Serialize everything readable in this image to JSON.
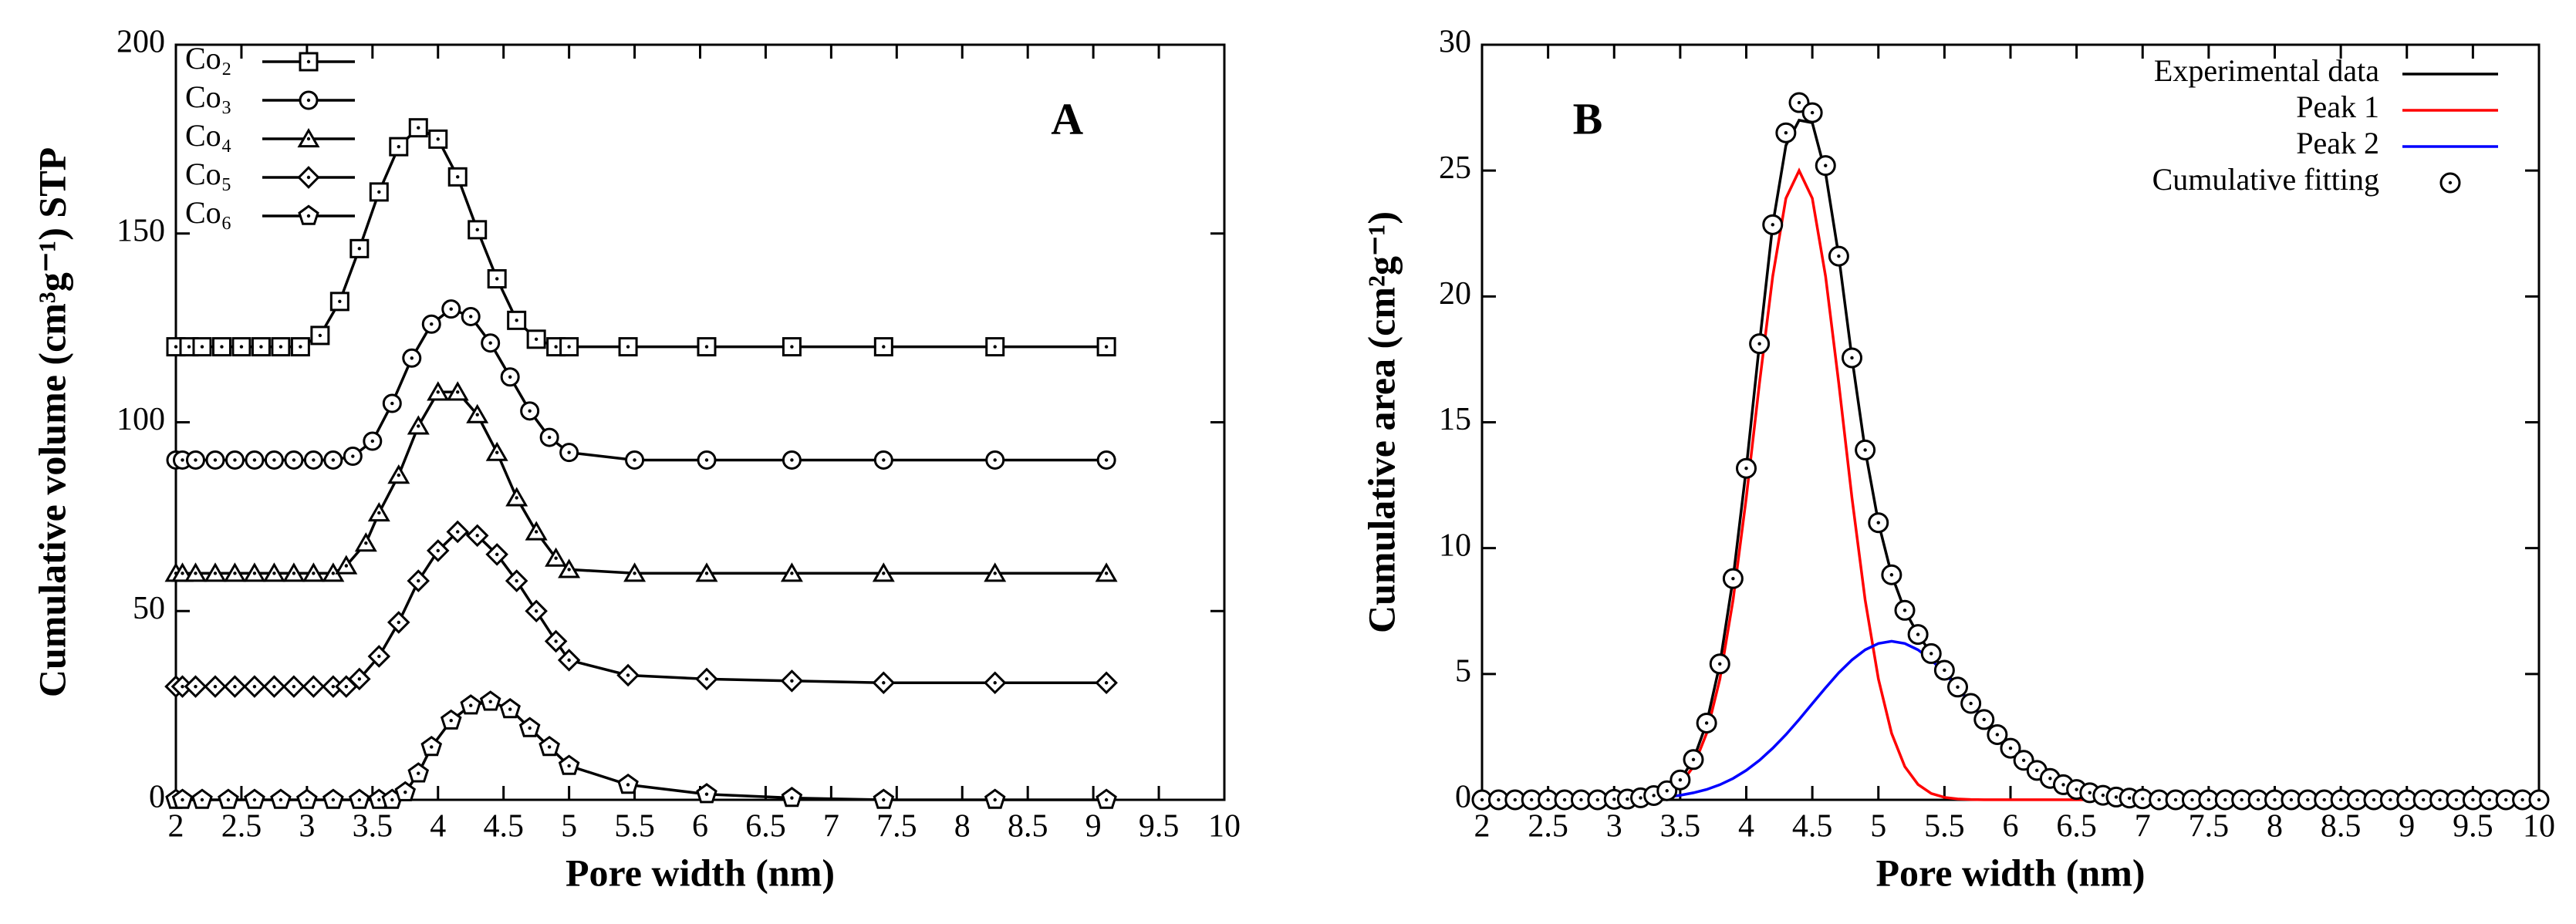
{
  "chart_data": [
    {
      "type": "line",
      "annotation": "A",
      "xlabel": "Pore width (nm)",
      "ylabel": "Cumulative volume (cm³g⁻¹) STP",
      "xlim": [
        2,
        10
      ],
      "ylim": [
        0,
        200
      ],
      "xticks": [
        2,
        2.5,
        3,
        3.5,
        4,
        4.5,
        5,
        5.5,
        6,
        6.5,
        7,
        7.5,
        8,
        8.5,
        9,
        9.5,
        10
      ],
      "yticks": [
        0,
        50,
        100,
        150,
        200
      ],
      "legend": "upper left",
      "series": [
        {
          "name": "Co₂",
          "color": "#000000",
          "marker": "square",
          "x": [
            2,
            2.1,
            2.2,
            2.35,
            2.5,
            2.65,
            2.8,
            2.95,
            3.1,
            3.25,
            3.4,
            3.55,
            3.7,
            3.85,
            4.0,
            4.15,
            4.3,
            4.45,
            4.6,
            4.75,
            4.9,
            5.0,
            5.45,
            6.05,
            6.7,
            7.4,
            8.25,
            9.1
          ],
          "values": [
            120,
            120,
            120,
            120,
            120,
            120,
            120,
            120,
            123,
            132,
            146,
            161,
            173,
            178,
            175,
            165,
            151,
            138,
            127,
            122,
            120,
            120,
            120,
            120,
            120,
            120,
            120,
            120
          ]
        },
        {
          "name": "Co₃",
          "color": "#000000",
          "marker": "circle",
          "x": [
            2,
            2.05,
            2.15,
            2.3,
            2.45,
            2.6,
            2.75,
            2.9,
            3.05,
            3.2,
            3.35,
            3.5,
            3.65,
            3.8,
            3.95,
            4.1,
            4.25,
            4.4,
            4.55,
            4.7,
            4.85,
            5.0,
            5.5,
            6.05,
            6.7,
            7.4,
            8.25,
            9.1
          ],
          "values": [
            90,
            90,
            90,
            90,
            90,
            90,
            90,
            90,
            90,
            90,
            91,
            95,
            105,
            117,
            126,
            130,
            128,
            121,
            112,
            103,
            96,
            92,
            90,
            90,
            90,
            90,
            90,
            90
          ]
        },
        {
          "name": "Co₄",
          "color": "#000000",
          "marker": "triangle",
          "x": [
            2,
            2.05,
            2.15,
            2.3,
            2.45,
            2.6,
            2.75,
            2.9,
            3.05,
            3.2,
            3.3,
            3.45,
            3.55,
            3.7,
            3.85,
            4.0,
            4.15,
            4.3,
            4.45,
            4.6,
            4.75,
            4.9,
            5.0,
            5.5,
            6.05,
            6.7,
            7.4,
            8.25,
            9.1
          ],
          "values": [
            60,
            60,
            60,
            60,
            60,
            60,
            60,
            60,
            60,
            60,
            62,
            68,
            76,
            86,
            99,
            108,
            108,
            102,
            92,
            80,
            71,
            64,
            61,
            60,
            60,
            60,
            60,
            60,
            60
          ]
        },
        {
          "name": "Co₅",
          "color": "#000000",
          "marker": "diamond",
          "x": [
            2,
            2.05,
            2.15,
            2.3,
            2.45,
            2.6,
            2.75,
            2.9,
            3.05,
            3.2,
            3.3,
            3.4,
            3.55,
            3.7,
            3.85,
            4.0,
            4.15,
            4.3,
            4.45,
            4.6,
            4.75,
            4.9,
            5.0,
            5.45,
            6.05,
            6.7,
            7.4,
            8.25,
            9.1
          ],
          "values": [
            30,
            30,
            30,
            30,
            30,
            30,
            30,
            30,
            30,
            30,
            30,
            32,
            38,
            47,
            58,
            66,
            71,
            70,
            65,
            58,
            50,
            42,
            37,
            33,
            32,
            31.5,
            31,
            31,
            31
          ]
        },
        {
          "name": "Co₆",
          "color": "#000000",
          "marker": "pentagon",
          "x": [
            2,
            2.05,
            2.2,
            2.4,
            2.6,
            2.8,
            3.0,
            3.2,
            3.4,
            3.55,
            3.65,
            3.75,
            3.85,
            3.95,
            4.1,
            4.25,
            4.4,
            4.55,
            4.7,
            4.85,
            5.0,
            5.45,
            6.05,
            6.7,
            7.4,
            8.25,
            9.1
          ],
          "values": [
            0,
            0,
            0,
            0,
            0,
            0,
            0,
            0,
            0,
            0,
            0,
            2,
            7,
            14,
            21,
            25,
            26,
            24,
            19,
            14,
            9,
            4,
            1.5,
            0.5,
            0,
            0,
            0
          ]
        }
      ]
    },
    {
      "type": "line",
      "annotation": "B",
      "xlabel": "Pore width (nm)",
      "ylabel": "Cumulative area (cm²g⁻¹)",
      "xlim": [
        2,
        10
      ],
      "ylim": [
        0,
        30
      ],
      "xticks": [
        2,
        2.5,
        3,
        3.5,
        4,
        4.5,
        5,
        5.5,
        6,
        6.5,
        7,
        7.5,
        8,
        8.5,
        9,
        9.5,
        10
      ],
      "yticks": [
        0,
        5,
        10,
        15,
        20,
        25,
        30
      ],
      "legend": "upper right",
      "series": [
        {
          "name": "Experimental data",
          "color": "#000000",
          "x": [
            2,
            3.0,
            3.1,
            3.2,
            3.3,
            3.4,
            3.5,
            3.6,
            3.7,
            3.8,
            3.9,
            4.0,
            4.1,
            4.2,
            4.3,
            4.4,
            4.5,
            4.6,
            4.7,
            4.8,
            4.9,
            5.0,
            5.1,
            5.2,
            5.3,
            5.4,
            5.5,
            5.6,
            5.7,
            5.8,
            5.9,
            6.0,
            6.1,
            6.2,
            6.3,
            6.4,
            6.5,
            6.6,
            6.7,
            6.8,
            6.9,
            7.0,
            10
          ],
          "values": [
            0,
            0.02,
            0.03,
            0.08,
            0.17,
            0.36,
            0.79,
            1.6,
            3.05,
            5.4,
            8.79,
            13.17,
            18.12,
            22.85,
            26.0,
            27.0,
            26.9,
            24.9,
            21.6,
            17.56,
            13.9,
            11.01,
            8.94,
            7.53,
            6.57,
            5.81,
            5.15,
            4.48,
            3.83,
            3.19,
            2.59,
            2.05,
            1.57,
            1.17,
            0.85,
            0.6,
            0.41,
            0.28,
            0.18,
            0.11,
            0.07,
            0.04,
            0
          ]
        },
        {
          "name": "Peak 1",
          "color": "#ff0000",
          "x": [
            2,
            3.0,
            3.1,
            3.2,
            3.3,
            3.4,
            3.5,
            3.6,
            3.7,
            3.8,
            3.9,
            4.0,
            4.1,
            4.2,
            4.3,
            4.4,
            4.5,
            4.6,
            4.7,
            4.8,
            4.9,
            5.0,
            5.1,
            5.2,
            5.3,
            5.4,
            5.5,
            5.6,
            5.7,
            5.8,
            10
          ],
          "values": [
            0,
            0.003,
            0.011,
            0.034,
            0.097,
            0.25,
            0.61,
            1.32,
            2.64,
            4.8,
            7.94,
            12.0,
            16.55,
            20.8,
            23.9,
            25,
            23.9,
            20.8,
            16.55,
            12.0,
            7.94,
            4.8,
            2.64,
            1.32,
            0.61,
            0.25,
            0.097,
            0.034,
            0.011,
            0.003,
            0
          ]
        },
        {
          "name": "Peak 2",
          "color": "#0000ff",
          "x": [
            2,
            3.0,
            3.1,
            3.2,
            3.3,
            3.4,
            3.5,
            3.6,
            3.7,
            3.8,
            3.9,
            4.0,
            4.1,
            4.2,
            4.3,
            4.4,
            4.5,
            4.6,
            4.7,
            4.8,
            4.9,
            5.0,
            5.1,
            5.2,
            5.3,
            5.4,
            5.5,
            5.6,
            5.7,
            5.8,
            5.9,
            6.0,
            6.1,
            6.2,
            6.3,
            6.4,
            6.5,
            6.6,
            6.7,
            6.8,
            6.9,
            7.0,
            10
          ],
          "values": [
            0,
            0.014,
            0.024,
            0.042,
            0.07,
            0.114,
            0.18,
            0.28,
            0.41,
            0.6,
            0.85,
            1.17,
            1.57,
            2.05,
            2.59,
            3.19,
            3.82,
            4.45,
            5.05,
            5.56,
            5.96,
            6.21,
            6.3,
            6.21,
            5.96,
            5.56,
            5.05,
            4.45,
            3.82,
            3.19,
            2.59,
            2.05,
            1.57,
            1.17,
            0.85,
            0.6,
            0.41,
            0.28,
            0.18,
            0.114,
            0.07,
            0.042,
            0
          ]
        },
        {
          "name": "Cumulative fitting",
          "color": "#000000",
          "marker": "circle",
          "line": false,
          "x": [
            2,
            2.125,
            2.25,
            2.375,
            2.5,
            2.625,
            2.75,
            2.875,
            3.0,
            3.1,
            3.2,
            3.3,
            3.4,
            3.5,
            3.6,
            3.7,
            3.8,
            3.9,
            4.0,
            4.1,
            4.2,
            4.3,
            4.4,
            4.5,
            4.6,
            4.7,
            4.8,
            4.9,
            5.0,
            5.1,
            5.2,
            5.3,
            5.4,
            5.5,
            5.6,
            5.7,
            5.8,
            5.9,
            6.0,
            6.1,
            6.2,
            6.3,
            6.4,
            6.5,
            6.6,
            6.7,
            6.8,
            6.9,
            7.0,
            7.125,
            7.25,
            7.375,
            7.5,
            7.625,
            7.75,
            7.875,
            8.0,
            8.125,
            8.25,
            8.375,
            8.5,
            8.625,
            8.75,
            8.875,
            9.0,
            9.125,
            9.25,
            9.375,
            9.5,
            9.625,
            9.75,
            9.875,
            10
          ],
          "values": [
            0,
            0,
            0,
            0,
            0,
            0,
            0,
            0,
            0.02,
            0.03,
            0.08,
            0.17,
            0.36,
            0.79,
            1.6,
            3.05,
            5.4,
            8.79,
            13.17,
            18.12,
            22.85,
            26.5,
            27.7,
            27.3,
            25.2,
            21.6,
            17.56,
            13.9,
            11.01,
            8.94,
            7.53,
            6.57,
            5.81,
            5.15,
            4.48,
            3.83,
            3.19,
            2.59,
            2.05,
            1.57,
            1.17,
            0.85,
            0.6,
            0.41,
            0.28,
            0.18,
            0.11,
            0.07,
            0.04,
            0,
            0,
            0,
            0,
            0,
            0,
            0,
            0,
            0,
            0,
            0,
            0,
            0,
            0,
            0,
            0,
            0,
            0,
            0,
            0,
            0,
            0,
            0,
            0
          ]
        }
      ]
    }
  ]
}
